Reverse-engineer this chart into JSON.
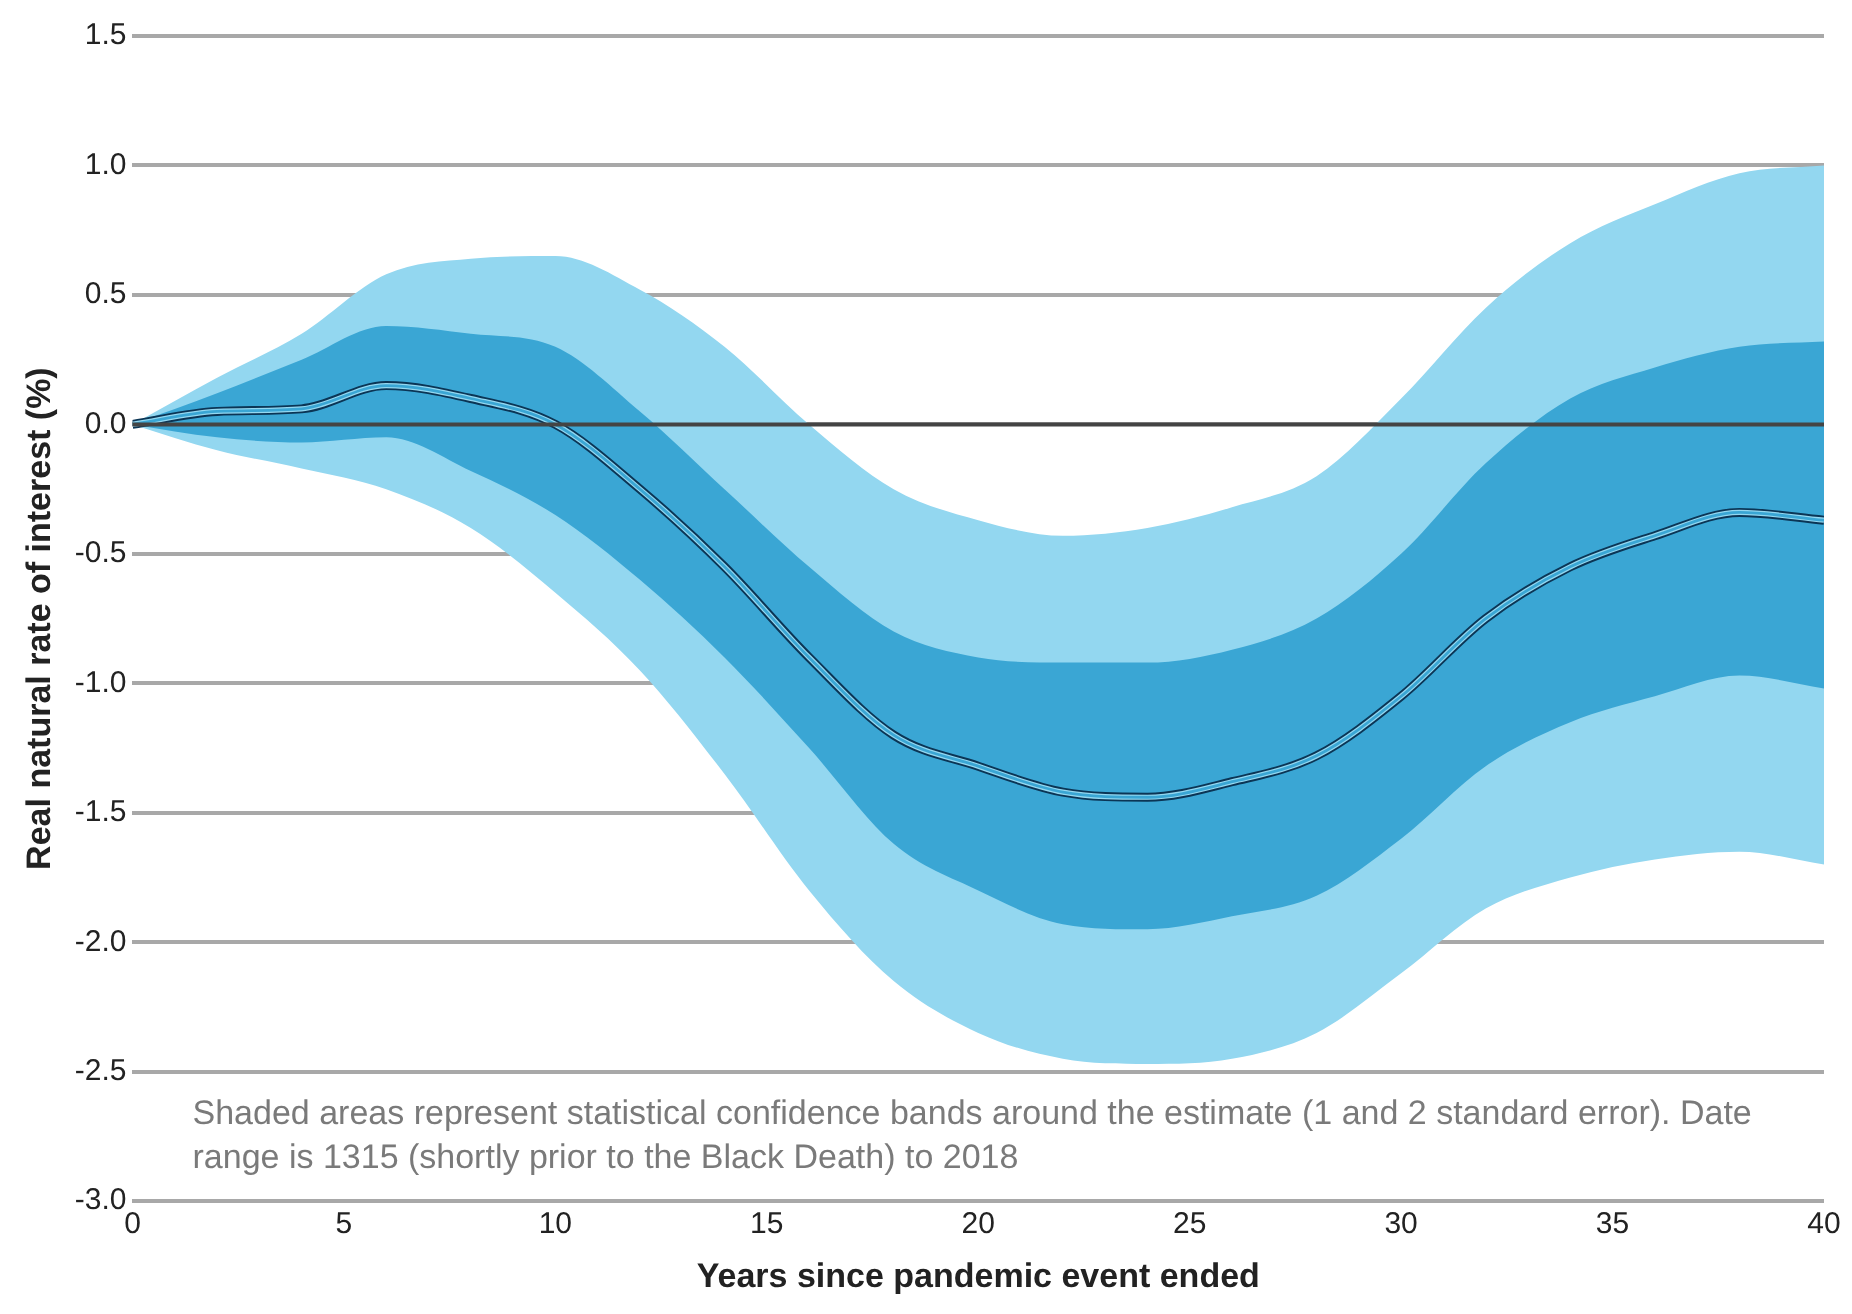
{
  "chart_data": {
    "type": "line",
    "xlabel": "Years since pandemic event ended",
    "ylabel": "Real natural rate of interest (%)",
    "x": [
      0,
      2,
      4,
      6,
      8,
      10,
      12,
      14,
      16,
      18,
      20,
      22,
      24,
      26,
      28,
      30,
      32,
      34,
      36,
      38,
      40
    ],
    "series": [
      {
        "color": "#93d7f0",
        "values": [
          0,
          0.05,
          0.06,
          0.15,
          0.1,
          0,
          -0.25,
          -0.55,
          -0.9,
          -1.2,
          -1.32,
          -1.42,
          -1.44,
          -1.38,
          -1.28,
          -1.05,
          -0.75,
          -0.55,
          -0.43,
          -0.34,
          -0.37
        ],
        "lower": [
          0,
          -0.1,
          -0.17,
          -0.25,
          -0.4,
          -0.65,
          -0.95,
          -1.35,
          -1.8,
          -2.15,
          -2.35,
          -2.45,
          -2.47,
          -2.45,
          -2.35,
          -2.12,
          -1.87,
          -1.75,
          -1.68,
          -1.65,
          -1.7
        ],
        "upper": [
          0,
          0.18,
          0.35,
          0.58,
          0.64,
          0.65,
          0.52,
          0.3,
          0,
          -0.25,
          -0.37,
          -0.43,
          -0.4,
          -0.32,
          -0.2,
          0.1,
          0.45,
          0.7,
          0.85,
          0.97,
          1.0
        ]
      },
      {
        "color": "#3aa6d4",
        "values": [
          0,
          0.05,
          0.06,
          0.15,
          0.1,
          0,
          -0.25,
          -0.55,
          -0.9,
          -1.2,
          -1.32,
          -1.42,
          -1.44,
          -1.38,
          -1.28,
          -1.05,
          -0.75,
          -0.55,
          -0.43,
          -0.34,
          -0.37
        ],
        "lower": [
          0,
          -0.05,
          -0.07,
          -0.05,
          -0.18,
          -0.35,
          -0.6,
          -0.9,
          -1.25,
          -1.62,
          -1.8,
          -1.93,
          -1.95,
          -1.9,
          -1.82,
          -1.6,
          -1.32,
          -1.15,
          -1.05,
          -0.97,
          -1.02
        ],
        "upper": [
          0,
          0.12,
          0.25,
          0.38,
          0.35,
          0.3,
          0.05,
          -0.25,
          -0.55,
          -0.8,
          -0.9,
          -0.92,
          -0.92,
          -0.87,
          -0.75,
          -0.5,
          -0.15,
          0.1,
          0.22,
          0.3,
          0.32
        ]
      },
      {
        "color": "#0b3555",
        "values": [
          0,
          0.05,
          0.06,
          0.15,
          0.1,
          0,
          -0.25,
          -0.55,
          -0.9,
          -1.2,
          -1.32,
          -1.42,
          -1.44,
          -1.38,
          -1.28,
          -1.05,
          -0.75,
          -0.55,
          -0.43,
          -0.34,
          -0.37
        ]
      }
    ],
    "xlim": [
      0,
      40
    ],
    "xticks": [
      0,
      5,
      10,
      15,
      20,
      25,
      30,
      35,
      40
    ],
    "ylim": [
      -3,
      1.5
    ],
    "yticks": [
      1.5,
      {
        "value": 1,
        "label": "1.0"
      },
      0.5,
      {
        "value": 0,
        "label": "0.0"
      },
      -0.5,
      {
        "value": -1,
        "label": "-1.0"
      },
      -1.5,
      {
        "value": -2,
        "label": "-2.0"
      },
      -2.5,
      {
        "value": -3,
        "label": "-3.0"
      }
    ],
    "grid": "y",
    "legend": false,
    "marker": "none",
    "line_style": "solid",
    "ref_lines": [
      {
        "axis": "y",
        "value": 0,
        "color": "#444444"
      }
    ],
    "annotations": [
      "Shaded areas represent statistical confidence bands around the estimate (1 and 2 standard error). Date range is 1315 (shortly prior to the Black Death) to 2018"
    ]
  }
}
